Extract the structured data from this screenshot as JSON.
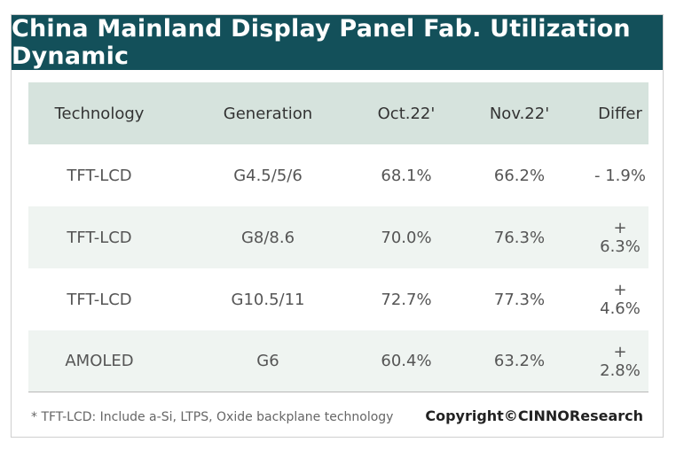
{
  "title": "China Mainland Display Panel Fab. Utilization Dynamic",
  "chart_data": {
    "type": "table",
    "title": "China Mainland Display Panel Fab. Utilization Dynamic",
    "columns": [
      "Technology",
      "Generation",
      "Oct.22'",
      "Nov.22'",
      "Differ"
    ],
    "rows": [
      [
        "TFT-LCD",
        "G4.5/5/6",
        "68.1%",
        "66.2%",
        "- 1.9%"
      ],
      [
        "TFT-LCD",
        "G8/8.6",
        "70.0%",
        "76.3%",
        "+ 6.3%"
      ],
      [
        "TFT-LCD",
        "G10.5/11",
        "72.7%",
        "77.3%",
        "+ 4.6%"
      ],
      [
        "AMOLED",
        "G6",
        "60.4%",
        "63.2%",
        "+ 2.8%"
      ]
    ]
  },
  "footnote": "* TFT-LCD: Include a-Si, LTPS, Oxide backplane technology",
  "copyright": "Copyright©CINNOResearch",
  "colors": {
    "title_bar": "#13505a",
    "header_row": "#d6e3dd",
    "shaded_row": "#eff4f1"
  }
}
